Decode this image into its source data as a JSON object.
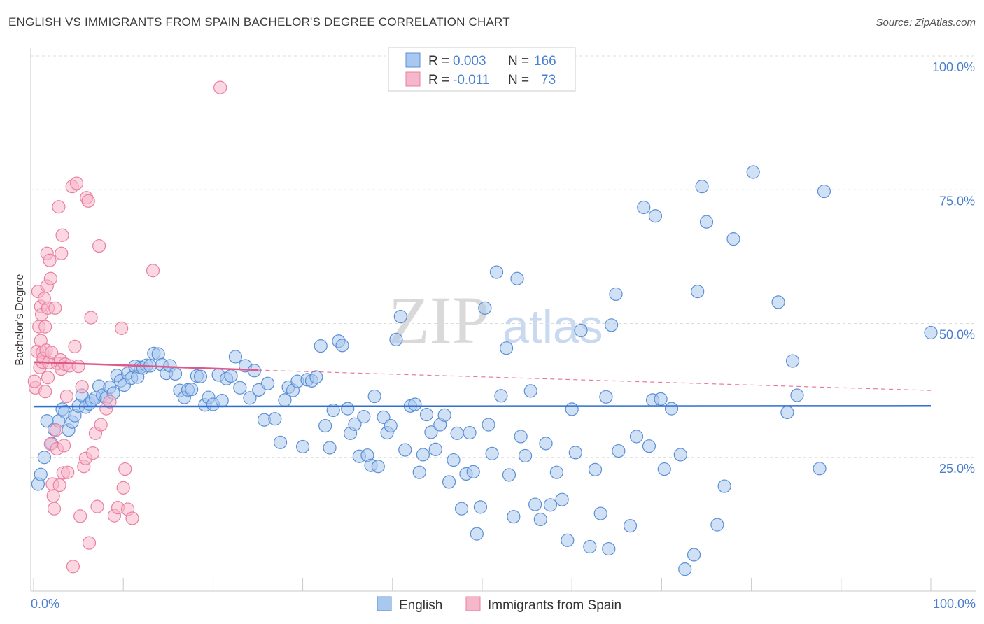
{
  "title": "ENGLISH VS IMMIGRANTS FROM SPAIN BACHELOR'S DEGREE CORRELATION CHART",
  "source": "Source: ZipAtlas.com",
  "watermark": {
    "zip": "ZIP",
    "atlas": "atlas"
  },
  "colors": {
    "english_fill": "#a9c8ef",
    "english_stroke": "#5b8fd6",
    "english_line": "#2f6fd0",
    "spain_fill": "#f7b7cb",
    "spain_stroke": "#e97fa2",
    "spain_line": "#e0578a",
    "tick_text": "#4a7fd0",
    "grid": "#dcdcdc"
  },
  "legend": {
    "rows": [
      {
        "r_label": "R = ",
        "r_value": "0.003",
        "n_label": "N = ",
        "n_value": "166"
      },
      {
        "r_label": "R = ",
        "r_value": "-0.011",
        "n_label": "N = ",
        "n_value": "73"
      }
    ]
  },
  "bottom_legend": {
    "english": "English",
    "spain": "Immigrants from Spain"
  },
  "chart_data": {
    "type": "scatter",
    "title": "ENGLISH VS IMMIGRANTS FROM SPAIN BACHELOR'S DEGREE CORRELATION CHART",
    "xlabel": "",
    "ylabel": "Bachelor's Degree",
    "xlim": [
      0,
      100
    ],
    "ylim": [
      0,
      100
    ],
    "x_tick_labels": {
      "left": "0.0%",
      "right": "100.0%"
    },
    "y_ticks": [
      {
        "value": 100,
        "label": "100.0%"
      },
      {
        "value": 75,
        "label": "75.0%"
      },
      {
        "value": 50,
        "label": "50.0%"
      },
      {
        "value": 25,
        "label": "25.0%"
      }
    ],
    "grid": true,
    "series": [
      {
        "name": "English",
        "R": 0.003,
        "N": 166,
        "trend": {
          "x": [
            0,
            100
          ],
          "y": [
            34.5,
            34.6
          ],
          "style": "solid"
        },
        "points": [
          [
            0.5,
            20
          ],
          [
            0.8,
            21.8
          ],
          [
            1.2,
            25
          ],
          [
            1.5,
            31.8
          ],
          [
            2,
            27.6
          ],
          [
            2.3,
            30.2
          ],
          [
            2.8,
            31.8
          ],
          [
            3.2,
            34
          ],
          [
            3.5,
            33.5
          ],
          [
            3.9,
            30.1
          ],
          [
            4.3,
            31.6
          ],
          [
            4.6,
            32.8
          ],
          [
            5,
            34.6
          ],
          [
            5.4,
            36.6
          ],
          [
            5.8,
            34.4
          ],
          [
            6.2,
            35
          ],
          [
            6.5,
            35.6
          ],
          [
            6.9,
            36.1
          ],
          [
            7.3,
            38.3
          ],
          [
            7.7,
            36.6
          ],
          [
            8.1,
            36.1
          ],
          [
            8.5,
            38.1
          ],
          [
            8.9,
            37
          ],
          [
            9.3,
            40.3
          ],
          [
            9.7,
            39.3
          ],
          [
            10.1,
            38.5
          ],
          [
            10.5,
            40.7
          ],
          [
            10.9,
            39.8
          ],
          [
            11.3,
            42
          ],
          [
            11.6,
            40
          ],
          [
            11.9,
            41.8
          ],
          [
            12.2,
            41.7
          ],
          [
            12.6,
            42.2
          ],
          [
            13,
            42.1
          ],
          [
            13.4,
            44.4
          ],
          [
            13.9,
            44.3
          ],
          [
            14.3,
            42.3
          ],
          [
            14.8,
            40.7
          ],
          [
            15.2,
            42.1
          ],
          [
            15.8,
            40.6
          ],
          [
            16.3,
            37.5
          ],
          [
            16.8,
            36.2
          ],
          [
            17.2,
            37.6
          ],
          [
            17.6,
            37.7
          ],
          [
            18.2,
            40.2
          ],
          [
            18.6,
            40.1
          ],
          [
            19.1,
            34.8
          ],
          [
            19.5,
            36.2
          ],
          [
            20,
            34.9
          ],
          [
            20.6,
            40.4
          ],
          [
            21,
            35.6
          ],
          [
            21.5,
            39.7
          ],
          [
            22,
            40.2
          ],
          [
            22.5,
            43.8
          ],
          [
            23,
            38
          ],
          [
            23.6,
            42.1
          ],
          [
            24.1,
            36.1
          ],
          [
            24.6,
            41.2
          ],
          [
            25.1,
            37.6
          ],
          [
            25.7,
            32
          ],
          [
            26.1,
            38.8
          ],
          [
            26.9,
            32.2
          ],
          [
            27.5,
            27.8
          ],
          [
            28,
            35.7
          ],
          [
            28.4,
            38.1
          ],
          [
            28.9,
            37.5
          ],
          [
            29.4,
            39.2
          ],
          [
            30,
            27
          ],
          [
            30.5,
            39.5
          ],
          [
            31,
            39.3
          ],
          [
            31.5,
            40
          ],
          [
            32,
            45.8
          ],
          [
            32.5,
            30.9
          ],
          [
            33,
            26.8
          ],
          [
            33.4,
            33.8
          ],
          [
            34,
            46.7
          ],
          [
            34.4,
            45.9
          ],
          [
            35,
            34.1
          ],
          [
            35.3,
            29.5
          ],
          [
            35.8,
            31.2
          ],
          [
            36.3,
            25.2
          ],
          [
            36.8,
            32.6
          ],
          [
            37.2,
            25.4
          ],
          [
            37.6,
            23.5
          ],
          [
            38,
            36.4
          ],
          [
            38.4,
            23.3
          ],
          [
            39,
            32.5
          ],
          [
            39.4,
            29.6
          ],
          [
            39.8,
            30.9
          ],
          [
            40.4,
            47
          ],
          [
            40.9,
            51.3
          ],
          [
            41.4,
            26.4
          ],
          [
            42,
            34.6
          ],
          [
            42.5,
            34.9
          ],
          [
            43,
            22.2
          ],
          [
            43.4,
            25.5
          ],
          [
            43.8,
            33
          ],
          [
            44.3,
            29.7
          ],
          [
            44.8,
            26.5
          ],
          [
            45.3,
            31.1
          ],
          [
            45.8,
            32.9
          ],
          [
            46.3,
            20.4
          ],
          [
            46.8,
            24.5
          ],
          [
            47.2,
            29.5
          ],
          [
            47.7,
            15.4
          ],
          [
            48.2,
            21.9
          ],
          [
            48.6,
            29.6
          ],
          [
            49,
            22.3
          ],
          [
            49.4,
            10.7
          ],
          [
            49.8,
            15.7
          ],
          [
            50.3,
            52.9
          ],
          [
            50.7,
            31.1
          ],
          [
            51.1,
            25.7
          ],
          [
            51.6,
            59.6
          ],
          [
            52.1,
            36.5
          ],
          [
            52.7,
            45.4
          ],
          [
            53,
            21.7
          ],
          [
            53.5,
            13.9
          ],
          [
            53.9,
            58.4
          ],
          [
            54.3,
            28.9
          ],
          [
            54.8,
            25.3
          ],
          [
            55.4,
            37.4
          ],
          [
            55.9,
            16.2
          ],
          [
            56.5,
            13.4
          ],
          [
            57.1,
            27.6
          ],
          [
            57.6,
            16.1
          ],
          [
            58.3,
            22.2
          ],
          [
            58.9,
            17.1
          ],
          [
            59.5,
            9.5
          ],
          [
            60,
            34
          ],
          [
            60.4,
            25.9
          ],
          [
            61,
            48.7
          ],
          [
            62,
            8.3
          ],
          [
            62.6,
            22.7
          ],
          [
            63.2,
            14.5
          ],
          [
            63.8,
            36.3
          ],
          [
            64.1,
            7.9
          ],
          [
            64.4,
            49.7
          ],
          [
            64.9,
            55.5
          ],
          [
            65.2,
            26.2
          ],
          [
            66.5,
            12.2
          ],
          [
            67.2,
            28.9
          ],
          [
            68,
            71.7
          ],
          [
            68.6,
            27.1
          ],
          [
            69,
            35.7
          ],
          [
            69.3,
            70.1
          ],
          [
            69.9,
            35.9
          ],
          [
            70.3,
            22.8
          ],
          [
            71.1,
            34.1
          ],
          [
            72.1,
            25.5
          ],
          [
            72.6,
            4.1
          ],
          [
            73.6,
            6.8
          ],
          [
            74,
            56
          ],
          [
            74.5,
            75.6
          ],
          [
            75,
            69
          ],
          [
            76.2,
            12.4
          ],
          [
            77,
            19.6
          ],
          [
            78,
            65.8
          ],
          [
            80.2,
            78.3
          ],
          [
            83,
            54
          ],
          [
            84,
            33.4
          ],
          [
            84.6,
            43
          ],
          [
            85.1,
            36.6
          ],
          [
            87.6,
            22.9
          ],
          [
            88.1,
            74.7
          ],
          [
            100,
            48.3
          ]
        ]
      },
      {
        "name": "Immigrants from Spain",
        "R": -0.011,
        "N": 73,
        "trend": {
          "x": [
            0,
            25
          ],
          "y": [
            42.8,
            41.3
          ],
          "style": "solid",
          "dashed_extension_to": [
            100,
            37.5
          ]
        },
        "points": [
          [
            0.2,
            38
          ],
          [
            0.4,
            44.8
          ],
          [
            0.5,
            56
          ],
          [
            0.6,
            49.4
          ],
          [
            0.7,
            41.8
          ],
          [
            0.8,
            46.8
          ],
          [
            0.8,
            53.2
          ],
          [
            0.9,
            51.7
          ],
          [
            1,
            44.6
          ],
          [
            1,
            42.8
          ],
          [
            1.1,
            43.5
          ],
          [
            1.2,
            54.7
          ],
          [
            1.3,
            49.4
          ],
          [
            1.3,
            37.3
          ],
          [
            1.4,
            45
          ],
          [
            1.5,
            57
          ],
          [
            1.5,
            63.1
          ],
          [
            1.6,
            52.9
          ],
          [
            1.6,
            39.9
          ],
          [
            1.7,
            42.7
          ],
          [
            1.8,
            61.8
          ],
          [
            1.9,
            58.4
          ],
          [
            1.9,
            27.5
          ],
          [
            2,
            44.6
          ],
          [
            2.1,
            20
          ],
          [
            2.2,
            17.8
          ],
          [
            2.3,
            15.4
          ],
          [
            2.4,
            52.9
          ],
          [
            2.5,
            30.1
          ],
          [
            2.6,
            26.6
          ],
          [
            2.7,
            42.5
          ],
          [
            2.8,
            71.8
          ],
          [
            2.9,
            19.8
          ],
          [
            3,
            43.2
          ],
          [
            3.1,
            63.1
          ],
          [
            3.1,
            41.5
          ],
          [
            3.2,
            66.5
          ],
          [
            3.3,
            22.1
          ],
          [
            3.4,
            27.2
          ],
          [
            3.5,
            42.4
          ],
          [
            3.7,
            36.4
          ],
          [
            3.8,
            22.2
          ],
          [
            4,
            42.1
          ],
          [
            4.3,
            75.6
          ],
          [
            4.4,
            4.6
          ],
          [
            4.6,
            45.7
          ],
          [
            4.8,
            76.2
          ],
          [
            5,
            42
          ],
          [
            5.2,
            14
          ],
          [
            5.4,
            38.2
          ],
          [
            5.6,
            23.3
          ],
          [
            5.8,
            24.8
          ],
          [
            5.9,
            73.5
          ],
          [
            6.1,
            72.9
          ],
          [
            6.2,
            9
          ],
          [
            6.4,
            51.1
          ],
          [
            6.6,
            25.8
          ],
          [
            6.9,
            29.5
          ],
          [
            7.1,
            15.8
          ],
          [
            7.3,
            64.5
          ],
          [
            7.5,
            31.1
          ],
          [
            8.1,
            34.1
          ],
          [
            8.5,
            35.4
          ],
          [
            9,
            14.1
          ],
          [
            9.4,
            15.6
          ],
          [
            9.8,
            49.1
          ],
          [
            10,
            19.3
          ],
          [
            10.2,
            22.8
          ],
          [
            10.5,
            15.3
          ],
          [
            11,
            13.6
          ],
          [
            13.3,
            59.9
          ],
          [
            20.8,
            94.1
          ],
          [
            0.1,
            39.2
          ]
        ]
      }
    ]
  }
}
